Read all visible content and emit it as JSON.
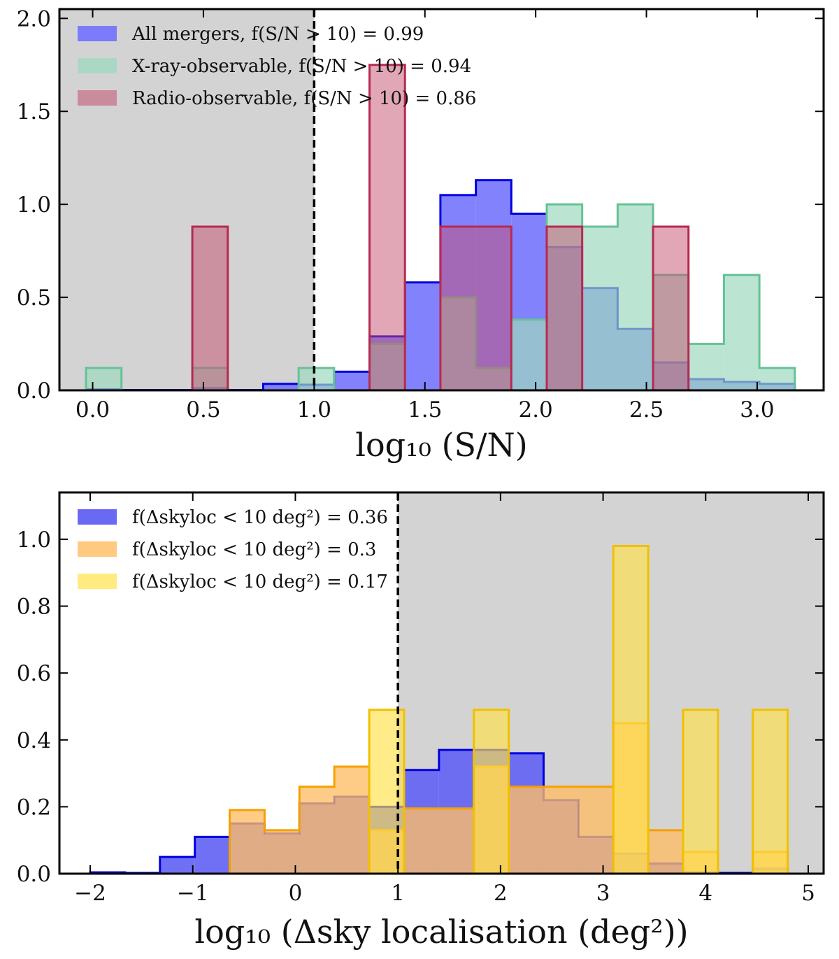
{
  "chart_data": [
    {
      "type": "histogram",
      "xlabel": "log₁₀ (S/N)",
      "ylabel": "",
      "xlim": [
        -0.15,
        3.3
      ],
      "ylim": [
        0,
        2.05
      ],
      "xticks": [
        0.0,
        0.5,
        1.0,
        1.5,
        2.0,
        2.5,
        3.0
      ],
      "xtick_labels": [
        "0.0",
        "0.5",
        "1.0",
        "1.5",
        "2.0",
        "2.5",
        "3.0"
      ],
      "yticks": [
        0.0,
        0.5,
        1.0,
        1.5,
        2.0
      ],
      "ytick_labels": [
        "0.0",
        "0.5",
        "1.0",
        "1.5",
        "2.0"
      ],
      "shaded_region": {
        "x": [
          -0.15,
          1.0
        ],
        "color": "#d3d3d3"
      },
      "threshold_line": 1.0,
      "legend_position": "top-left",
      "series": [
        {
          "name": "All mergers, f(S/N > 10) = 0.99",
          "fill": "#7b7bfc",
          "edge": "#0000e0",
          "opacity": 0.95,
          "linewidth": 3,
          "bins": [
            [
              -0.03,
              0.13,
              0.005
            ],
            [
              0.13,
              0.28,
              0.002
            ],
            [
              0.28,
              0.45,
              0.002
            ],
            [
              0.45,
              0.61,
              0.012
            ],
            [
              0.61,
              0.77,
              0.002
            ],
            [
              0.77,
              0.93,
              0.035
            ],
            [
              0.93,
              1.09,
              0.03
            ],
            [
              1.09,
              1.25,
              0.1
            ],
            [
              1.25,
              1.41,
              0.29
            ],
            [
              1.41,
              1.57,
              0.58
            ],
            [
              1.57,
              1.73,
              1.05
            ],
            [
              1.73,
              1.89,
              1.13
            ],
            [
              1.89,
              2.05,
              0.95
            ],
            [
              2.05,
              2.21,
              0.77
            ],
            [
              2.21,
              2.37,
              0.55
            ],
            [
              2.37,
              2.53,
              0.33
            ],
            [
              2.53,
              2.69,
              0.15
            ],
            [
              2.69,
              2.85,
              0.06
            ],
            [
              2.85,
              3.01,
              0.045
            ],
            [
              3.01,
              3.17,
              0.035
            ]
          ]
        },
        {
          "name": "X-ray-observable, f(S/N > 10) = 0.94",
          "fill": "#9ed9bf",
          "edge": "#66c296",
          "opacity": 0.7,
          "linewidth": 3,
          "bins": [
            [
              -0.03,
              0.13,
              0.12
            ],
            [
              0.45,
              0.61,
              0.12
            ],
            [
              0.93,
              1.09,
              0.12
            ],
            [
              1.25,
              1.41,
              0.25
            ],
            [
              1.57,
              1.73,
              0.5
            ],
            [
              1.73,
              1.89,
              0.12
            ],
            [
              1.89,
              2.05,
              0.38
            ],
            [
              2.05,
              2.21,
              1.0
            ],
            [
              2.21,
              2.37,
              0.88
            ],
            [
              2.37,
              2.53,
              1.0
            ],
            [
              2.53,
              2.69,
              0.62
            ],
            [
              2.69,
              2.85,
              0.25
            ],
            [
              2.85,
              3.01,
              0.62
            ],
            [
              3.01,
              3.17,
              0.12
            ]
          ]
        },
        {
          "name": "Radio-observable, f(S/N > 10) = 0.86",
          "fill": "#c3506f",
          "edge": "#b8294f",
          "opacity": 0.5,
          "linewidth": 3,
          "bins": [
            [
              0.45,
              0.61,
              0.88
            ],
            [
              1.25,
              1.41,
              1.75
            ],
            [
              1.57,
              1.73,
              0.88
            ],
            [
              1.73,
              1.89,
              0.88
            ],
            [
              2.05,
              2.21,
              0.88
            ],
            [
              2.53,
              2.69,
              0.88
            ]
          ]
        }
      ]
    },
    {
      "type": "histogram",
      "xlabel": "log₁₀ (Δsky localisation (deg²))",
      "ylabel": "",
      "xlim": [
        -2.3,
        5.15
      ],
      "ylim": [
        0,
        1.14
      ],
      "xticks": [
        -2,
        -1,
        0,
        1,
        2,
        3,
        4,
        5
      ],
      "xtick_labels": [
        "−2",
        "−1",
        "0",
        "1",
        "2",
        "3",
        "4",
        "5"
      ],
      "yticks": [
        0.0,
        0.2,
        0.4,
        0.6,
        0.8,
        1.0
      ],
      "ytick_labels": [
        "0.0",
        "0.2",
        "0.4",
        "0.6",
        "0.8",
        "1.0"
      ],
      "shaded_region": {
        "x": [
          1.0,
          5.15
        ],
        "color": "#d3d3d3"
      },
      "threshold_line": 1.0,
      "legend_position": "top-left",
      "series": [
        {
          "name": "f(Δskyloc < 10 deg²) = 0.36",
          "fill": "#6464f4",
          "edge": "#0000e0",
          "opacity": 0.92,
          "linewidth": 3,
          "bins": [
            [
              -2.0,
              -1.66,
              0.004
            ],
            [
              -1.66,
              -1.32,
              0.002
            ],
            [
              -1.32,
              -0.98,
              0.05
            ],
            [
              -0.98,
              -0.64,
              0.11
            ],
            [
              -0.64,
              -0.3,
              0.15
            ],
            [
              -0.3,
              0.04,
              0.12
            ],
            [
              0.04,
              0.38,
              0.21
            ],
            [
              0.38,
              0.72,
              0.23
            ],
            [
              0.72,
              1.06,
              0.2
            ],
            [
              1.06,
              1.4,
              0.31
            ],
            [
              1.4,
              1.74,
              0.37
            ],
            [
              1.74,
              2.08,
              0.37
            ],
            [
              2.08,
              2.42,
              0.36
            ],
            [
              2.42,
              2.76,
              0.22
            ],
            [
              2.76,
              3.1,
              0.11
            ],
            [
              3.1,
              3.44,
              0.06
            ],
            [
              3.44,
              3.78,
              0.03
            ],
            [
              3.78,
              4.12,
              0.005
            ],
            [
              4.12,
              4.46,
              0.002
            ],
            [
              4.46,
              4.8,
              0.015
            ]
          ]
        },
        {
          "name": "f(Δskyloc < 10 deg²) = 0.3",
          "fill": "#ffbe66",
          "edge": "#f5a000",
          "opacity": 0.78,
          "linewidth": 3,
          "bins": [
            [
              -0.64,
              -0.3,
              0.19
            ],
            [
              -0.3,
              0.04,
              0.13
            ],
            [
              0.04,
              0.38,
              0.26
            ],
            [
              0.38,
              0.72,
              0.32
            ],
            [
              0.72,
              1.06,
              0.13
            ],
            [
              1.06,
              1.4,
              0.195
            ],
            [
              1.4,
              1.74,
              0.195
            ],
            [
              1.74,
              2.08,
              0.32
            ],
            [
              2.08,
              2.42,
              0.26
            ],
            [
              2.42,
              2.76,
              0.26
            ],
            [
              2.76,
              3.1,
              0.26
            ],
            [
              3.1,
              3.44,
              0.45
            ],
            [
              3.44,
              3.78,
              0.13
            ],
            [
              3.78,
              4.12,
              0.065
            ],
            [
              4.46,
              4.8,
              0.065
            ]
          ]
        },
        {
          "name": "f(Δskyloc < 10 deg²) = 0.17",
          "fill": "#ffe248",
          "edge": "#f0c000",
          "opacity": 0.65,
          "linewidth": 3,
          "bins": [
            [
              0.72,
              1.06,
              0.49
            ],
            [
              1.74,
              2.08,
              0.49
            ],
            [
              3.1,
              3.44,
              0.98
            ],
            [
              3.78,
              4.12,
              0.49
            ],
            [
              4.46,
              4.8,
              0.49
            ]
          ]
        }
      ]
    }
  ]
}
